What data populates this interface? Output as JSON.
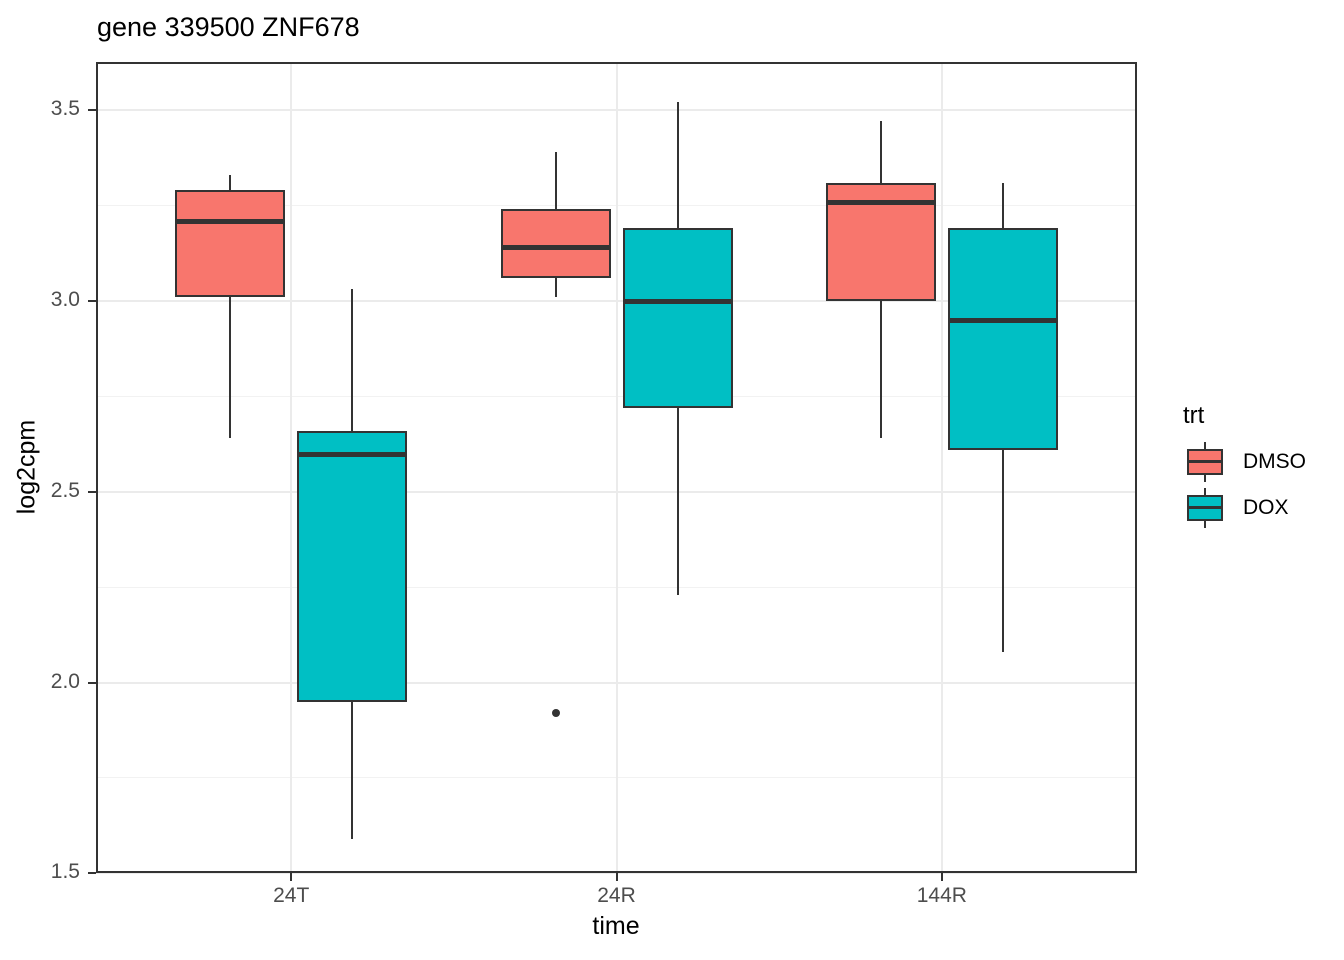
{
  "chart_data": {
    "type": "boxplot",
    "title": "gene 339500 ZNF678",
    "xlabel": "time",
    "ylabel": "log2cpm",
    "x_axis": {
      "categories": [
        "24T",
        "24R",
        "144R"
      ]
    },
    "y_axis": {
      "ticks": [
        {
          "value": 1.5,
          "label": "1.5"
        },
        {
          "value": 2.0,
          "label": "2.0"
        },
        {
          "value": 2.5,
          "label": "2.5"
        },
        {
          "value": 3.0,
          "label": "3.0"
        },
        {
          "value": 3.5,
          "label": "3.5"
        }
      ],
      "minor_ticks": [
        1.75,
        2.25,
        2.75,
        3.25
      ],
      "range": [
        1.49,
        3.63
      ]
    },
    "grid": {
      "major": true,
      "minor": true
    },
    "legend": {
      "title": "trt",
      "position": "right",
      "entries": [
        {
          "label": "DMSO",
          "color": "#F8766D"
        },
        {
          "label": "DOX",
          "color": "#00BFC4"
        }
      ]
    },
    "series": [
      {
        "name": "DMSO",
        "color": "#F8766D",
        "boxes": [
          {
            "category": "24T",
            "whisker_low": 2.64,
            "q1": 3.01,
            "median": 3.21,
            "q3": 3.29,
            "whisker_high": 3.33,
            "outliers": []
          },
          {
            "category": "24R",
            "whisker_low": 3.01,
            "q1": 3.06,
            "median": 3.14,
            "q3": 3.24,
            "whisker_high": 3.39,
            "outliers": [
              1.92
            ]
          },
          {
            "category": "144R",
            "whisker_low": 2.64,
            "q1": 3.0,
            "median": 3.26,
            "q3": 3.31,
            "whisker_high": 3.47,
            "outliers": []
          }
        ]
      },
      {
        "name": "DOX",
        "color": "#00BFC4",
        "boxes": [
          {
            "category": "24T",
            "whisker_low": 1.59,
            "q1": 1.95,
            "median": 2.6,
            "q3": 2.66,
            "whisker_high": 3.03,
            "outliers": []
          },
          {
            "category": "24R",
            "whisker_low": 2.23,
            "q1": 2.72,
            "median": 3.0,
            "q3": 3.19,
            "whisker_high": 3.52,
            "outliers": []
          },
          {
            "category": "144R",
            "whisker_low": 2.08,
            "q1": 2.61,
            "median": 2.95,
            "q3": 3.19,
            "whisker_high": 3.31,
            "outliers": []
          }
        ]
      }
    ]
  }
}
